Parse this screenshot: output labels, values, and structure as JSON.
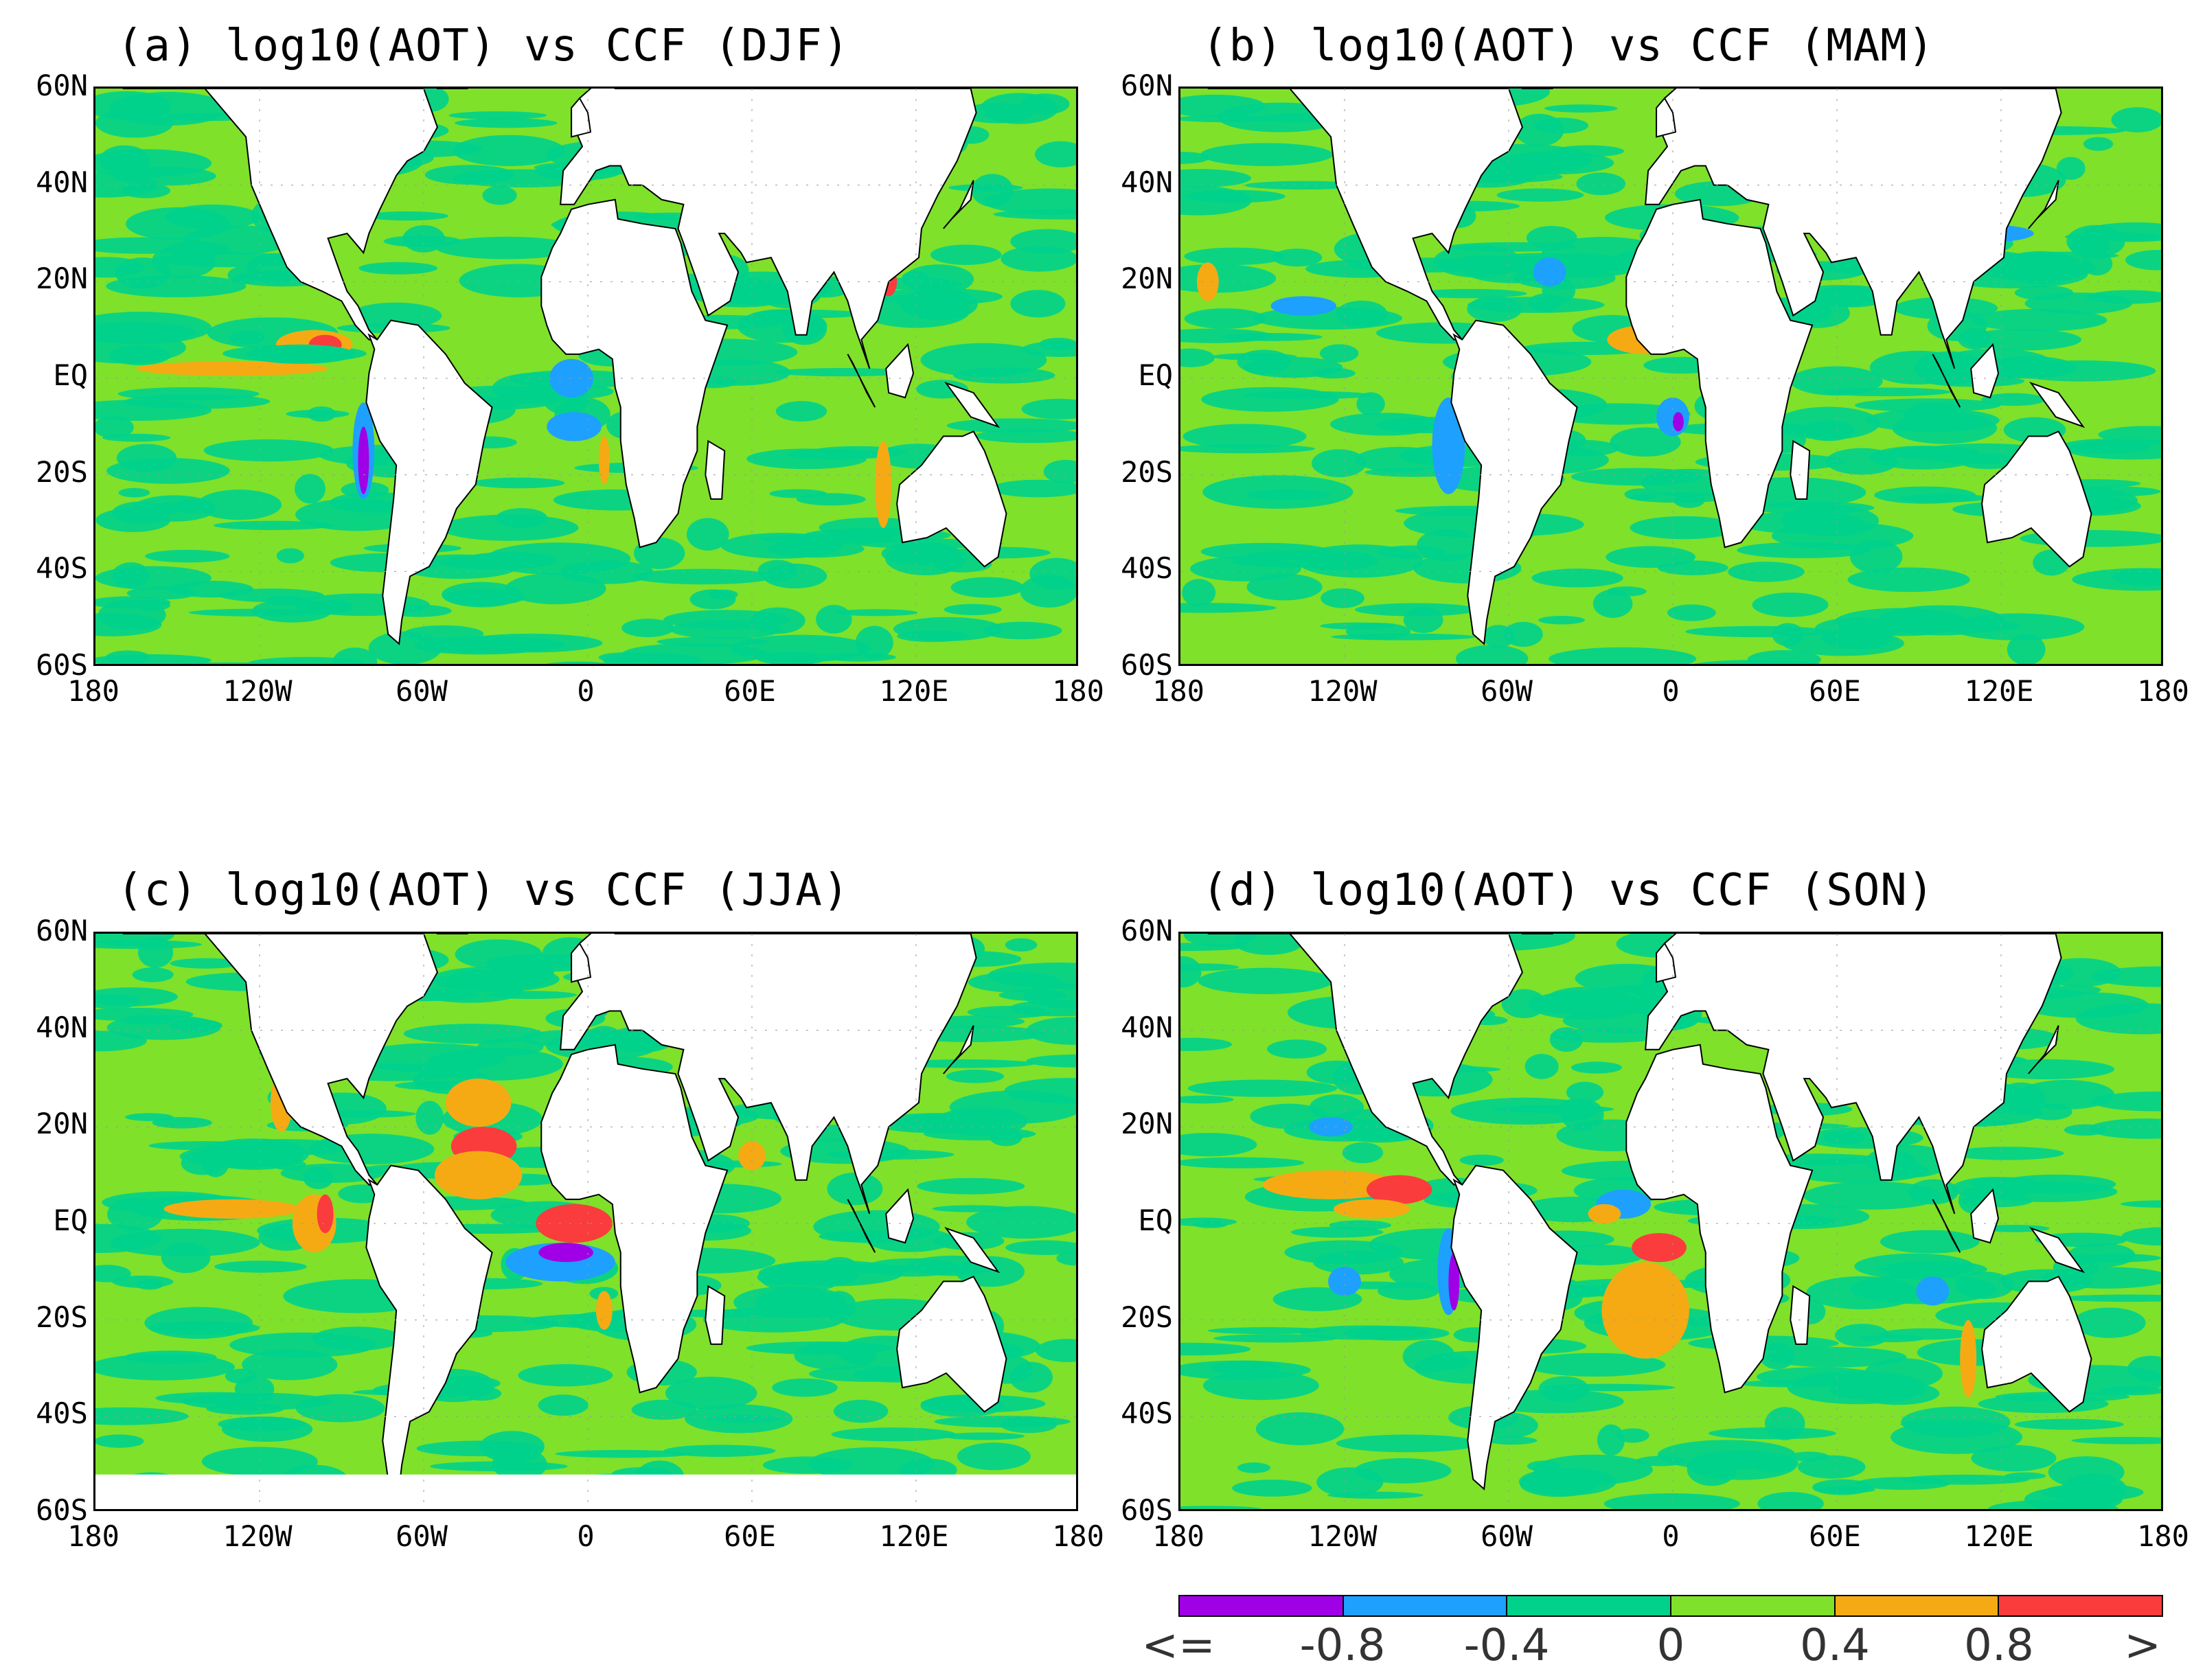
{
  "panels": [
    {
      "title": "(a) log10(AOT) vs CCF (DJF)",
      "season": "DJF"
    },
    {
      "title": "(b) log10(AOT) vs CCF (MAM)",
      "season": "MAM"
    },
    {
      "title": "(c) log10(AOT) vs CCF (JJA)",
      "season": "JJA"
    },
    {
      "title": "(d) log10(AOT) vs CCF (SON)",
      "season": "SON"
    }
  ],
  "y_ticks": [
    "60N",
    "40N",
    "20N",
    "EQ",
    "20S",
    "40S",
    "60S"
  ],
  "x_ticks": [
    "180",
    "120W",
    "60W",
    "0",
    "60E",
    "120E",
    "180"
  ],
  "colorbar": {
    "labels": [
      "<=",
      "-0.8",
      "-0.4",
      "0",
      "0.4",
      "0.8",
      ">"
    ],
    "colors": [
      "#a000e6",
      "#1ea0ff",
      "#00d28c",
      "#7fe12a",
      "#f5aa14",
      "#fa3c3c"
    ]
  },
  "colors": {
    "land": "#ffffff",
    "ocean_base": "#7fe12a",
    "ocean_teal": "#00d28c",
    "blue": "#1ea0ff",
    "purple": "#a000e6",
    "orange": "#f5aa14",
    "red": "#fa3c3c"
  }
}
